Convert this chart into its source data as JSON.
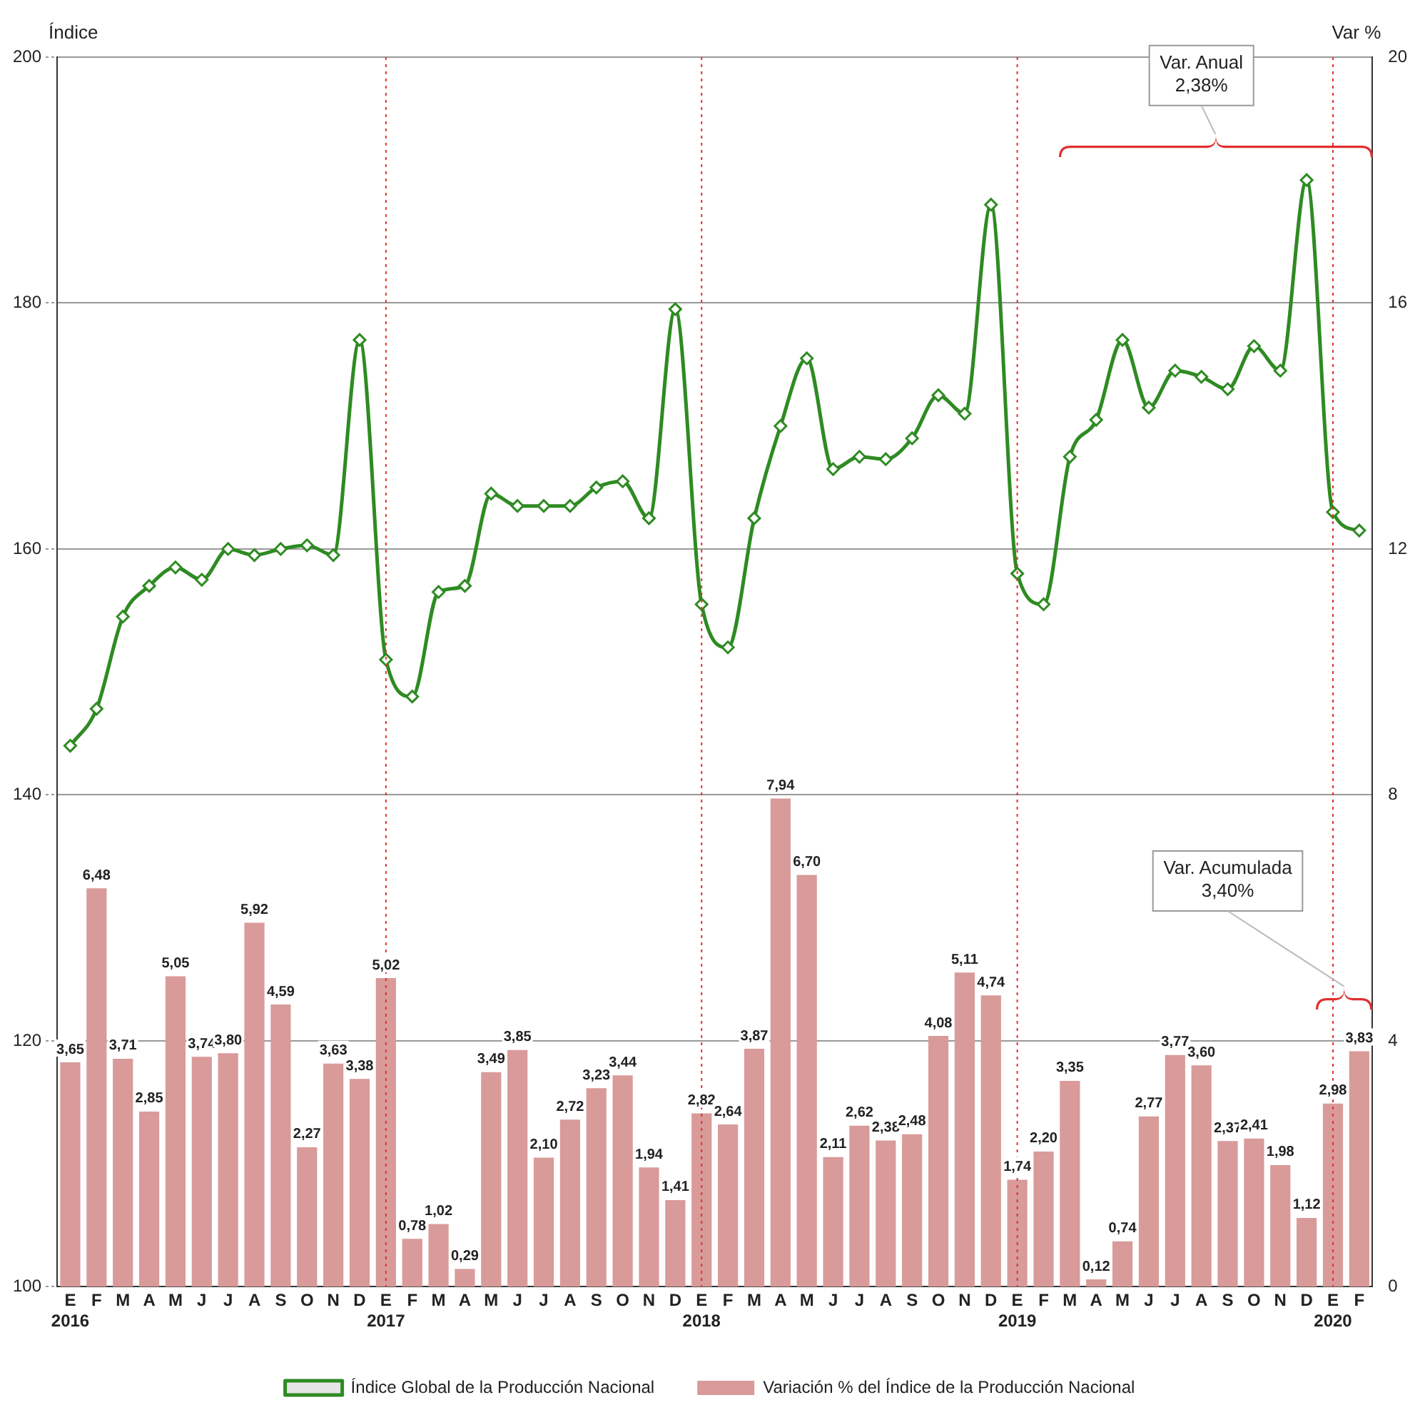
{
  "chart_data": {
    "type": "bar",
    "categories": [
      "E\n2016",
      "F",
      "M",
      "A",
      "M",
      "J",
      "J",
      "A",
      "S",
      "O",
      "N",
      "D",
      "E\n2017",
      "F",
      "M",
      "A",
      "M",
      "J",
      "J",
      "A",
      "S",
      "O",
      "N",
      "D",
      "E\n2018",
      "F",
      "M",
      "A",
      "M",
      "J",
      "J",
      "A",
      "S",
      "O",
      "N",
      "D",
      "E\n2019",
      "F",
      "M",
      "A",
      "M",
      "J",
      "J",
      "A",
      "S",
      "O",
      "N",
      "D",
      "E\n2020",
      "F"
    ],
    "series": [
      {
        "name": "Variación % del Índice de la Producción Nacional",
        "axis": "y2",
        "color": "#d99a9a",
        "values": [
          3.65,
          6.48,
          3.71,
          2.85,
          5.05,
          3.74,
          3.8,
          5.92,
          4.59,
          2.27,
          3.63,
          3.38,
          5.02,
          0.78,
          1.02,
          0.29,
          3.49,
          3.85,
          2.1,
          2.72,
          3.23,
          3.44,
          1.94,
          1.41,
          2.82,
          2.64,
          3.87,
          7.94,
          6.7,
          2.11,
          2.62,
          2.38,
          2.48,
          4.08,
          5.11,
          4.74,
          1.74,
          2.2,
          3.35,
          0.12,
          0.74,
          2.77,
          3.77,
          3.6,
          2.37,
          2.41,
          1.98,
          1.12,
          2.98,
          3.83
        ],
        "value_labels": [
          "3,65",
          "6,48",
          "3,71",
          "2,85",
          "5,05",
          "3,74",
          "3,80",
          "5,92",
          "4,59",
          "2,27",
          "3,63",
          "3,38",
          "5,02",
          "0,78",
          "1,02",
          "0,29",
          "3,49",
          "3,85",
          "2,10",
          "2,72",
          "3,23",
          "3,44",
          "1,94",
          "1,41",
          "2,82",
          "2,64",
          "3,87",
          "7,94",
          "6,70",
          "2,11",
          "2,62",
          "2,38",
          "2,48",
          "4,08",
          "5,11",
          "4,74",
          "1,74",
          "2,20",
          "3,35",
          "0,12",
          "0,74",
          "2,77",
          "3,77",
          "3,60",
          "2,37",
          "2,41",
          "1,98",
          "1,12",
          "2,98",
          "3,83"
        ]
      },
      {
        "name": "Índice Global de la Producción Nacional",
        "type": "line",
        "color": "#2e8b22",
        "marker": "diamond",
        "values": [
          144,
          147,
          154.5,
          157,
          158.5,
          157.5,
          160,
          159.5,
          160,
          160.3,
          159.5,
          177,
          151,
          148,
          156.5,
          157,
          164.5,
          163.5,
          163.5,
          163.5,
          165,
          165.5,
          162.5,
          179.5,
          155.5,
          152,
          162.5,
          170,
          175.5,
          166.5,
          167.5,
          167.3,
          169,
          172.5,
          171,
          188,
          158,
          155.5,
          167.5,
          170.5,
          177,
          171.5,
          174.5,
          174,
          173,
          176.5,
          174.5,
          190,
          163,
          161.5
        ]
      }
    ],
    "ylabel": "Índice",
    "y2label": "Var %",
    "ylim": [
      100,
      200
    ],
    "yticks": [
      100,
      120,
      140,
      160,
      180,
      200
    ],
    "y2lim": [
      0,
      20
    ],
    "y2ticks": [
      0,
      4,
      8,
      12,
      16,
      20
    ],
    "grid": "y",
    "legend": "bottom",
    "ref_lines": [
      {
        "axis": "x",
        "value": "E\n2017",
        "color": "#e03030",
        "line_style": "dotted"
      },
      {
        "axis": "x",
        "value": "E\n2018",
        "color": "#e03030",
        "line_style": "dotted"
      },
      {
        "axis": "x",
        "value": "E\n2019",
        "color": "#e03030",
        "line_style": "dotted"
      },
      {
        "axis": "x",
        "value": "E\n2020",
        "color": "#e03030",
        "line_style": "dotted"
      }
    ],
    "annotations": [
      "Var. Anual\n2,38%",
      "Var. Acumulada\n3,40%"
    ]
  }
}
